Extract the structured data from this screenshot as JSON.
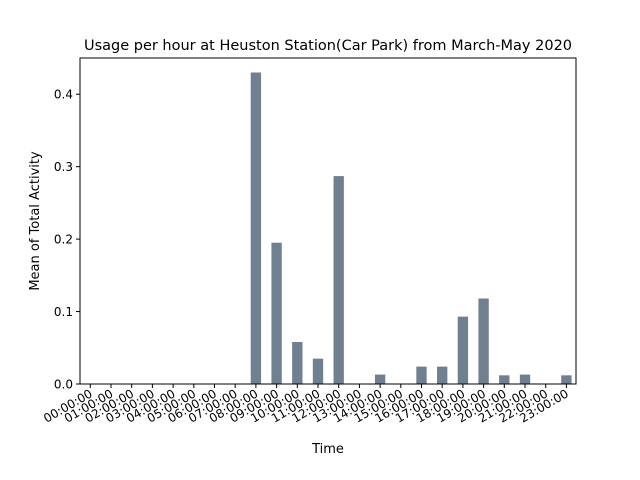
{
  "chart_data": {
    "type": "bar",
    "title": "Usage per hour at  Heuston Station(Car Park) from March-May 2020",
    "xlabel": "Time",
    "ylabel": "Mean of Total Activity",
    "categories": [
      "00:00:00",
      "01:00:00",
      "02:00:00",
      "03:00:00",
      "04:00:00",
      "05:00:00",
      "06:00:00",
      "07:00:00",
      "08:00:00",
      "09:00:00",
      "10:00:00",
      "11:00:00",
      "12:00:00",
      "13:00:00",
      "14:00:00",
      "15:00:00",
      "16:00:00",
      "17:00:00",
      "18:00:00",
      "19:00:00",
      "20:00:00",
      "21:00:00",
      "22:00:00",
      "23:00:00"
    ],
    "values": [
      0,
      0,
      0,
      0,
      0,
      0,
      0,
      0,
      0.43,
      0.195,
      0.058,
      0.035,
      0.287,
      0,
      0.013,
      0,
      0.024,
      0.024,
      0.093,
      0.118,
      0.012,
      0.013,
      0,
      0.012
    ],
    "ylim": [
      0,
      0.45
    ],
    "yticks": [
      0.0,
      0.1,
      0.2,
      0.3,
      0.4
    ],
    "ytick_labels": [
      "0.0",
      "0.1",
      "0.2",
      "0.3",
      "0.4"
    ],
    "bar_color": "#708090",
    "grid": false,
    "legend": "none"
  }
}
